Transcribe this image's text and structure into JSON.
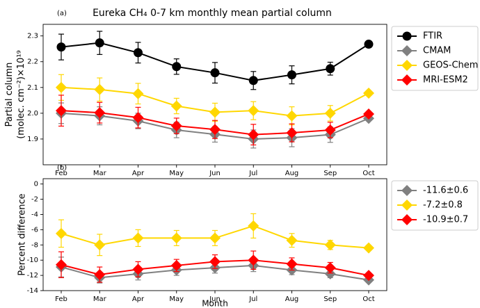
{
  "chart_data": [
    {
      "type": "line",
      "panel": "(a)",
      "title": "Eureka CH₄ 0-7 km monthly mean partial column",
      "ylabel": [
        "Partial column",
        "(molec. cm⁻²)×10¹⁹"
      ],
      "categories": [
        "Feb",
        "Mar",
        "Apr",
        "May",
        "Jun",
        "Jul",
        "Aug",
        "Sep",
        "Oct"
      ],
      "ylim": [
        1.8,
        2.345
      ],
      "yticks": [
        1.9,
        {
          "value": 2,
          "label": "2.0"
        },
        2.1,
        2.2,
        2.3
      ],
      "grid": false,
      "legend": "outside-right",
      "series": [
        {
          "name": "FTIR",
          "color": "#000000",
          "marker": "circle",
          "values": [
            2.257,
            2.273,
            2.235,
            2.181,
            2.157,
            2.127,
            2.149,
            2.173,
            2.268
          ],
          "errors": [
            0.05,
            0.045,
            0.04,
            0.03,
            0.04,
            0.035,
            0.035,
            0.025,
            0.01
          ]
        },
        {
          "name": "CMAM",
          "color": "#808080",
          "marker": "diamond",
          "values": [
            2.0,
            1.99,
            1.97,
            1.935,
            1.918,
            1.9,
            1.905,
            1.917,
            1.98
          ],
          "errors": [
            0.04,
            0.035,
            0.03,
            0.03,
            0.03,
            0.035,
            0.035,
            0.03,
            0.005
          ]
        },
        {
          "name": "GEOS-Chem",
          "color": "#ffd700",
          "marker": "diamond",
          "values": [
            2.1,
            2.092,
            2.076,
            2.028,
            2.004,
            2.01,
            1.99,
            2.0,
            2.078
          ],
          "errors": [
            0.05,
            0.045,
            0.04,
            0.03,
            0.035,
            0.035,
            0.035,
            0.03,
            0.005
          ]
        },
        {
          "name": "MRI-ESM2",
          "color": "#ff0000",
          "marker": "diamond",
          "values": [
            2.01,
            2.002,
            1.983,
            1.951,
            1.937,
            1.917,
            1.924,
            1.935,
            1.997
          ],
          "errors": [
            0.06,
            0.04,
            0.04,
            0.03,
            0.035,
            0.04,
            0.035,
            0.03,
            0.005
          ]
        }
      ]
    },
    {
      "type": "line",
      "panel": "(b)",
      "xlabel": "Month",
      "ylabel": [
        "Percent difference"
      ],
      "categories": [
        "Feb",
        "Mar",
        "Apr",
        "May",
        "Jun",
        "Jul",
        "Aug",
        "Sep",
        "Oct"
      ],
      "ylim": [
        -14,
        0.7
      ],
      "yticks": [
        0,
        -2,
        -4,
        -6,
        -8,
        -10,
        -12,
        -14
      ],
      "grid": false,
      "legend": "outside-right",
      "series": [
        {
          "name": "-11.6±0.6",
          "color": "#808080",
          "marker": "diamond",
          "values": [
            -10.9,
            -12.3,
            -11.8,
            -11.3,
            -11.0,
            -10.7,
            -11.3,
            -11.8,
            -12.6
          ],
          "errors": [
            1.3,
            0.7,
            0.8,
            0.7,
            0.7,
            0.8,
            0.6,
            0.5,
            0.2
          ]
        },
        {
          "name": "-7.2±0.8",
          "color": "#ffd700",
          "marker": "diamond",
          "values": [
            -6.5,
            -8.0,
            -7.1,
            -7.1,
            -7.1,
            -5.5,
            -7.4,
            -8.0,
            -8.4
          ],
          "errors": [
            1.8,
            1.4,
            1.1,
            1.0,
            1.0,
            1.6,
            0.9,
            0.6,
            0.3
          ]
        },
        {
          "name": "-10.9±0.7",
          "color": "#ff0000",
          "marker": "diamond",
          "values": [
            -10.6,
            -11.9,
            -11.2,
            -10.7,
            -10.2,
            -10.0,
            -10.5,
            -11.0,
            -12.0
          ],
          "errors": [
            1.7,
            1.0,
            1.0,
            0.8,
            0.9,
            1.2,
            0.8,
            0.7,
            0.3
          ]
        }
      ]
    }
  ]
}
